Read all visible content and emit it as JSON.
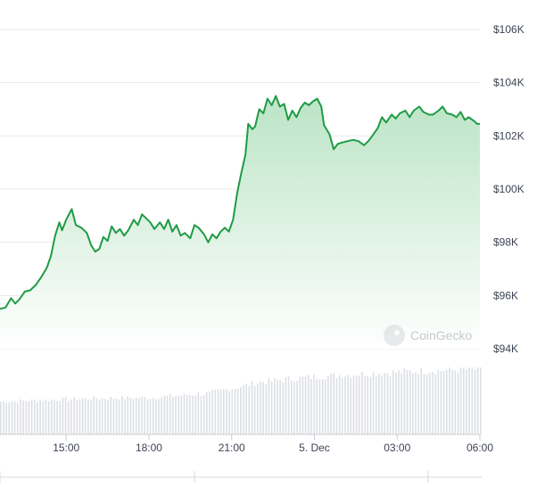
{
  "watermark": {
    "text": "CoinGecko",
    "icon": "coingecko-logo-icon"
  },
  "colors": {
    "line": "#1f9b45",
    "area_top": "#b8e3c3",
    "area_bottom": "#ffffff",
    "grid": "#e6e8ec",
    "volume": "#dcdfe4",
    "text": "#3d4454"
  },
  "chart_data": [
    {
      "type": "area",
      "series": [
        {
          "name": "",
          "unit": "USD"
        }
      ],
      "y_ticks": [
        {
          "value": 94000,
          "label": "$94K"
        },
        {
          "value": 96000,
          "label": "$96K"
        },
        {
          "value": 98000,
          "label": "$98K"
        },
        {
          "value": 100000,
          "label": "$100K"
        },
        {
          "value": 102000,
          "label": "$102K"
        },
        {
          "value": 104000,
          "label": "$104K"
        },
        {
          "value": 106000,
          "label": "$106K"
        }
      ],
      "ylim": [
        94000,
        106000
      ],
      "x_hours_range": [
        12.6,
        30.0
      ],
      "x_ticks": [
        {
          "hour": 15,
          "label": "15:00"
        },
        {
          "hour": 18,
          "label": "18:00"
        },
        {
          "hour": 21,
          "label": "21:00"
        },
        {
          "hour": 24,
          "label": "5. Dec"
        },
        {
          "hour": 27,
          "label": "03:00"
        },
        {
          "hour": 30,
          "label": "06:00"
        }
      ],
      "grid": true,
      "points": [
        [
          12.6,
          95500
        ],
        [
          12.8,
          95550
        ],
        [
          13.0,
          95900
        ],
        [
          13.15,
          95700
        ],
        [
          13.3,
          95850
        ],
        [
          13.5,
          96150
        ],
        [
          13.7,
          96200
        ],
        [
          13.9,
          96400
        ],
        [
          14.1,
          96700
        ],
        [
          14.3,
          97050
        ],
        [
          14.45,
          97500
        ],
        [
          14.6,
          98250
        ],
        [
          14.75,
          98750
        ],
        [
          14.85,
          98450
        ],
        [
          15.0,
          98850
        ],
        [
          15.2,
          99250
        ],
        [
          15.35,
          98650
        ],
        [
          15.55,
          98550
        ],
        [
          15.75,
          98350
        ],
        [
          15.9,
          97900
        ],
        [
          16.05,
          97650
        ],
        [
          16.2,
          97750
        ],
        [
          16.35,
          98200
        ],
        [
          16.5,
          98050
        ],
        [
          16.65,
          98600
        ],
        [
          16.8,
          98350
        ],
        [
          16.95,
          98500
        ],
        [
          17.1,
          98250
        ],
        [
          17.25,
          98450
        ],
        [
          17.45,
          98850
        ],
        [
          17.6,
          98650
        ],
        [
          17.75,
          99050
        ],
        [
          17.9,
          98900
        ],
        [
          18.05,
          98750
        ],
        [
          18.2,
          98500
        ],
        [
          18.4,
          98750
        ],
        [
          18.55,
          98500
        ],
        [
          18.7,
          98850
        ],
        [
          18.85,
          98400
        ],
        [
          19.0,
          98650
        ],
        [
          19.15,
          98250
        ],
        [
          19.3,
          98350
        ],
        [
          19.5,
          98150
        ],
        [
          19.65,
          98650
        ],
        [
          19.8,
          98550
        ],
        [
          20.0,
          98300
        ],
        [
          20.15,
          98000
        ],
        [
          20.3,
          98300
        ],
        [
          20.45,
          98150
        ],
        [
          20.6,
          98400
        ],
        [
          20.75,
          98550
        ],
        [
          20.9,
          98400
        ],
        [
          21.05,
          98850
        ],
        [
          21.2,
          99850
        ],
        [
          21.35,
          100600
        ],
        [
          21.5,
          101300
        ],
        [
          21.6,
          102450
        ],
        [
          21.75,
          102250
        ],
        [
          21.85,
          102350
        ],
        [
          22.0,
          103000
        ],
        [
          22.15,
          102850
        ],
        [
          22.3,
          103400
        ],
        [
          22.45,
          103150
        ],
        [
          22.6,
          103500
        ],
        [
          22.75,
          103100
        ],
        [
          22.9,
          103200
        ],
        [
          23.05,
          102600
        ],
        [
          23.2,
          102950
        ],
        [
          23.35,
          102700
        ],
        [
          23.5,
          103050
        ],
        [
          23.65,
          103250
        ],
        [
          23.8,
          103150
        ],
        [
          23.95,
          103300
        ],
        [
          24.1,
          103400
        ],
        [
          24.25,
          103100
        ],
        [
          24.35,
          102400
        ],
        [
          24.55,
          102050
        ],
        [
          24.7,
          101500
        ],
        [
          24.85,
          101700
        ],
        [
          25.0,
          101750
        ],
        [
          25.2,
          101800
        ],
        [
          25.4,
          101850
        ],
        [
          25.6,
          101800
        ],
        [
          25.8,
          101650
        ],
        [
          25.95,
          101800
        ],
        [
          26.1,
          102000
        ],
        [
          26.3,
          102300
        ],
        [
          26.45,
          102700
        ],
        [
          26.6,
          102500
        ],
        [
          26.8,
          102800
        ],
        [
          26.95,
          102650
        ],
        [
          27.1,
          102850
        ],
        [
          27.3,
          102950
        ],
        [
          27.45,
          102700
        ],
        [
          27.6,
          102950
        ],
        [
          27.8,
          103100
        ],
        [
          27.95,
          102900
        ],
        [
          28.15,
          102800
        ],
        [
          28.3,
          102800
        ],
        [
          28.5,
          102950
        ],
        [
          28.65,
          103100
        ],
        [
          28.8,
          102850
        ],
        [
          29.0,
          102800
        ],
        [
          29.15,
          102700
        ],
        [
          29.3,
          102900
        ],
        [
          29.45,
          102600
        ],
        [
          29.6,
          102700
        ],
        [
          29.8,
          102550
        ],
        [
          29.9,
          102450
        ],
        [
          30.0,
          102450
        ]
      ]
    },
    {
      "type": "bar",
      "series": [
        {
          "name": "",
          "unit": "volume"
        }
      ],
      "ylim": [
        0,
        1
      ],
      "x_hours_range": [
        12.6,
        30.0
      ],
      "volume_trend": [
        [
          12.6,
          0.5
        ],
        [
          16.0,
          0.55
        ],
        [
          18.0,
          0.56
        ],
        [
          20.0,
          0.62
        ],
        [
          21.0,
          0.7
        ],
        [
          22.0,
          0.8
        ],
        [
          24.0,
          0.88
        ],
        [
          26.0,
          0.93
        ],
        [
          28.0,
          0.97
        ],
        [
          30.0,
          1.0
        ]
      ]
    }
  ]
}
